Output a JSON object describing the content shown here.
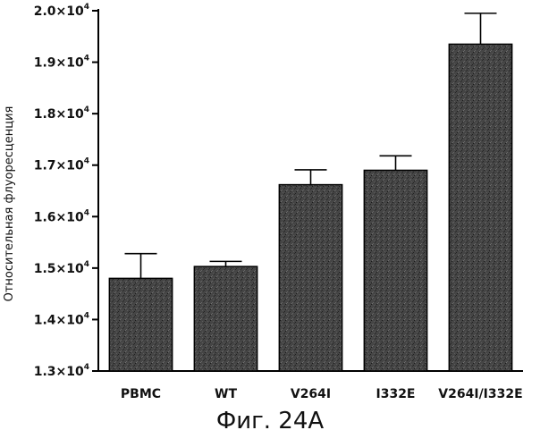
{
  "chart_data": {
    "type": "bar",
    "title": "",
    "caption": "Фиг. 24А",
    "xlabel": "",
    "ylabel": "Относительная флуоресценция",
    "categories": [
      "PBMC",
      "WT",
      "V264I",
      "I332E",
      "V264I/I332E"
    ],
    "values": [
      14800,
      15030,
      16620,
      16900,
      19350
    ],
    "errors": [
      480,
      100,
      290,
      280,
      600
    ],
    "ylim": [
      13000,
      20000
    ],
    "yticks": [
      13000,
      14000,
      15000,
      16000,
      17000,
      18000,
      19000,
      20000
    ],
    "ytick_labels": [
      {
        "mantissa": "1.3×10",
        "exp": "4"
      },
      {
        "mantissa": "1.4×10",
        "exp": "4"
      },
      {
        "mantissa": "1.5×10",
        "exp": "4"
      },
      {
        "mantissa": "1.6×10",
        "exp": "4"
      },
      {
        "mantissa": "1.7×10",
        "exp": "4"
      },
      {
        "mantissa": "1.8×10",
        "exp": "4"
      },
      {
        "mantissa": "1.9×10",
        "exp": "4"
      },
      {
        "mantissa": "2.0×10",
        "exp": "4"
      }
    ],
    "bar_color": "#3a3a3a"
  }
}
